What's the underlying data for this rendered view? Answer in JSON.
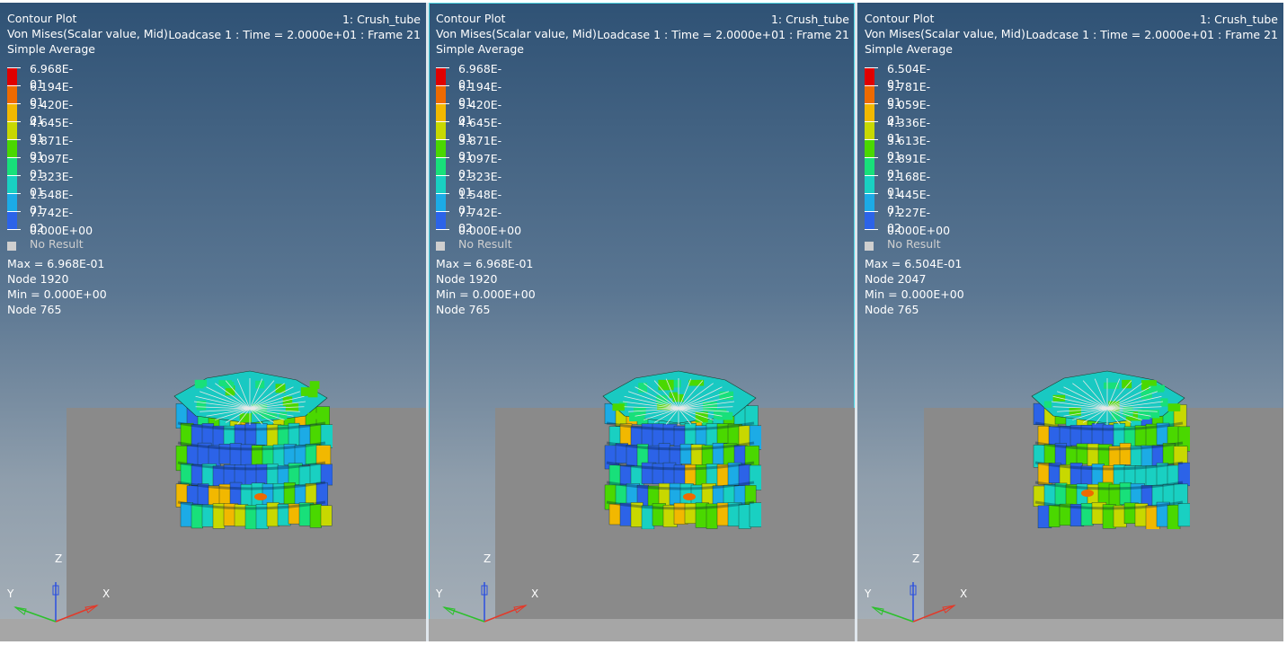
{
  "viewports": [
    {
      "id": "vp1",
      "active": false,
      "plot_title": "Contour Plot",
      "result_type": "Von Mises(Scalar value, Mid)",
      "averaging": "Simple Average",
      "model_name": "1: Crush_tube",
      "loadcase": "Loadcase 1 : Time = 2.0000e+01 : Frame 21",
      "legend": [
        "6.968E-01",
        "6.194E-01",
        "5.420E-01",
        "4.645E-01",
        "3.871E-01",
        "3.097E-01",
        "2.323E-01",
        "1.548E-01",
        "7.742E-02",
        "0.000E+00"
      ],
      "no_result": "No Result",
      "max_line": "Max =  6.968E-01",
      "max_node": "Node 1920",
      "min_line": "Min =  0.000E+00",
      "min_node": "Node 765",
      "axes": {
        "z": "Z",
        "y": "Y",
        "x": "X"
      }
    },
    {
      "id": "vp2",
      "active": true,
      "plot_title": "Contour Plot",
      "result_type": "Von Mises(Scalar value, Mid)",
      "averaging": "Simple Average",
      "model_name": "1: Crush_tube",
      "loadcase": "Loadcase 1 : Time = 2.0000e+01 : Frame 21",
      "legend": [
        "6.968E-01",
        "6.194E-01",
        "5.420E-01",
        "4.645E-01",
        "3.871E-01",
        "3.097E-01",
        "2.323E-01",
        "1.548E-01",
        "7.742E-02",
        "0.000E+00"
      ],
      "no_result": "No Result",
      "max_line": "Max =  6.968E-01",
      "max_node": "Node 1920",
      "min_line": "Min =  0.000E+00",
      "min_node": "Node 765",
      "axes": {
        "z": "Z",
        "y": "Y",
        "x": "X"
      }
    },
    {
      "id": "vp3",
      "active": false,
      "plot_title": "Contour Plot",
      "result_type": "Von Mises(Scalar value, Mid)",
      "averaging": "Simple Average",
      "model_name": "1: Crush_tube",
      "loadcase": "Loadcase 1 : Time = 2.0000e+01 : Frame 21",
      "legend": [
        "6.504E-01",
        "5.781E-01",
        "5.059E-01",
        "4.336E-01",
        "3.613E-01",
        "2.891E-01",
        "2.168E-01",
        "1.445E-01",
        "7.227E-02",
        "0.000E+00"
      ],
      "no_result": "No Result",
      "max_line": "Max =  6.504E-01",
      "max_node": "Node 2047",
      "min_line": "Min =  0.000E+00",
      "min_node": "Node 765",
      "axes": {
        "z": "Z",
        "y": "Y",
        "x": "X"
      }
    }
  ],
  "legend_colors": [
    "#e00000",
    "#ee6a00",
    "#f2b800",
    "#c8d800",
    "#4ad800",
    "#18e07a",
    "#19d0c2",
    "#1cabe6",
    "#2c63e8",
    "#0a12b8"
  ],
  "colors": {
    "background_top": "#2f5275",
    "background_bottom": "#a7b0b8",
    "floor": "#8a8a8a",
    "active_border": "#4ed6e4",
    "axis_x": "#e23a2a",
    "axis_y": "#2cc02c",
    "axis_z": "#2a4fe0"
  }
}
